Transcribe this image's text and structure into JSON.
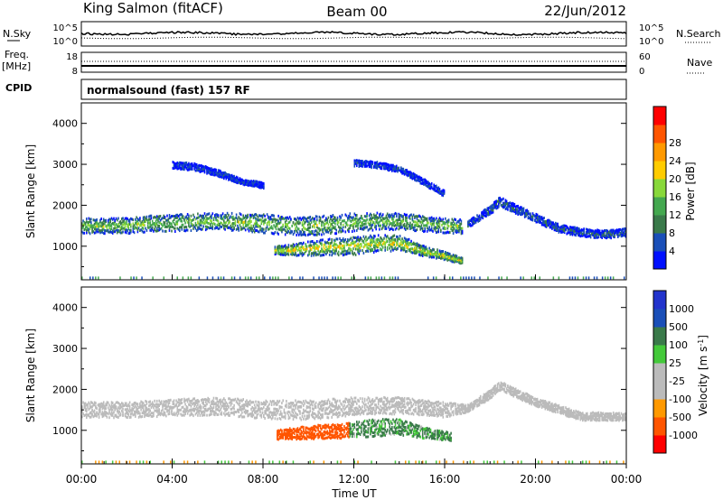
{
  "header": {
    "station": "King Salmon (fitACF)",
    "beam": "Beam 00",
    "date": "22/Jun/2012"
  },
  "top_panels": {
    "nsky_label": "N.Sky",
    "nsky_ticks": [
      "10^5",
      "10^0"
    ],
    "nsearch_label": "N.Search",
    "freq_label_line1": "Freq.",
    "freq_label_line2": "[MHz]",
    "freq_ticks": [
      "18",
      "8"
    ],
    "nave_label": "Nave",
    "nave_ticks": [
      "60",
      "0"
    ],
    "cpid_label": "CPID",
    "cpid_value": "normalsound (fast) 157 RF"
  },
  "colors": {
    "power_scale": [
      "#0010ff",
      "#1a4fb8",
      "#3a7a4a",
      "#44a84f",
      "#88d83a",
      "#ffcc00",
      "#ff9900",
      "#ff5500",
      "#ff0000"
    ],
    "velocity_scale": [
      "#ff0000",
      "#ff5500",
      "#ff9900",
      "#bbbbbb",
      "#bbbbbb",
      "#44c93a",
      "#3a7a4a",
      "#1a4fb8",
      "#2233cc"
    ],
    "ground_scatter": "#bbbbbb"
  },
  "chart_data": [
    {
      "type": "heatmap",
      "name": "Power",
      "ylabel": "Slant Range [km]",
      "yticks": [
        "1000",
        "2000",
        "3000",
        "4000"
      ],
      "ylim": [
        180,
        4500
      ],
      "colorbar_label": "Power [dB]",
      "colorbar_ticks": [
        "4",
        "8",
        "12",
        "16",
        "20",
        "24",
        "28"
      ],
      "colorbar_range": [
        0,
        30
      ],
      "bands": [
        {
          "x": [
            0,
            1,
            2,
            3,
            4,
            5,
            6,
            7,
            8,
            9,
            10,
            11,
            12,
            13,
            14,
            15,
            16,
            16.8
          ],
          "range_center": [
            1500,
            1500,
            1500,
            1550,
            1560,
            1580,
            1600,
            1580,
            1550,
            1500,
            1480,
            1520,
            1580,
            1600,
            1600,
            1550,
            1500,
            1480
          ],
          "width": [
            380,
            380,
            380,
            400,
            420,
            420,
            420,
            440,
            460,
            470,
            470,
            460,
            440,
            420,
            400,
            380,
            360,
            340
          ],
          "core_power": 14
        },
        {
          "x": [
            8.5,
            9,
            10,
            11,
            12,
            13,
            14,
            15,
            16,
            16.8
          ],
          "range_center": [
            920,
            910,
            940,
            980,
            1000,
            1060,
            1080,
            900,
            780,
            650
          ],
          "width": [
            200,
            250,
            350,
            400,
            450,
            420,
            380,
            250,
            200,
            150
          ],
          "core_power": 18
        },
        {
          "x": [
            17,
            18,
            18.4,
            19,
            20,
            21,
            22,
            23,
            24
          ],
          "range_center": [
            1550,
            1900,
            2100,
            1950,
            1700,
            1450,
            1350,
            1300,
            1350
          ],
          "width": [
            180,
            220,
            230,
            220,
            200,
            200,
            200,
            200,
            200
          ],
          "core_power": 6
        },
        {
          "x": [
            4,
            5,
            6,
            7,
            8
          ],
          "range_center": [
            3000,
            2950,
            2800,
            2600,
            2500
          ],
          "width": [
            160,
            180,
            160,
            140,
            140
          ],
          "core_power": 4
        },
        {
          "x": [
            12,
            13,
            14,
            15,
            16
          ],
          "range_center": [
            3050,
            3000,
            2900,
            2600,
            2300
          ],
          "width": [
            150,
            150,
            150,
            150,
            150
          ],
          "core_power": 4
        }
      ]
    },
    {
      "type": "heatmap",
      "name": "Velocity",
      "xlabel": "Time UT",
      "xticks": [
        "00:00",
        "04:00",
        "08:00",
        "12:00",
        "16:00",
        "20:00",
        "00:00"
      ],
      "xlim": [
        0,
        24
      ],
      "ylabel": "Slant Range [km]",
      "yticks": [
        "1000",
        "2000",
        "3000",
        "4000"
      ],
      "ylim": [
        180,
        4500
      ],
      "colorbar_label": "Velocity [m s^-1]",
      "colorbar_ticks": [
        "1000",
        "500",
        "100",
        "25",
        "-25",
        "-100",
        "-500",
        "-1000"
      ],
      "colorbar_range": [
        -1000,
        1000
      ],
      "bands": [
        {
          "x": [
            0,
            2,
            4,
            6,
            8,
            10,
            12,
            14,
            16,
            17,
            18,
            18.4,
            19,
            20,
            22,
            24
          ],
          "range_center": [
            1500,
            1500,
            1550,
            1580,
            1500,
            1480,
            1580,
            1600,
            1500,
            1550,
            1900,
            2100,
            1950,
            1700,
            1350,
            1350
          ],
          "width": [
            380,
            380,
            420,
            420,
            460,
            470,
            440,
            400,
            360,
            180,
            220,
            230,
            220,
            200,
            200,
            200
          ],
          "velocity": 0
        },
        {
          "x": [
            8.6,
            9,
            10,
            11,
            11.8
          ],
          "range_center": [
            900,
            920,
            950,
            980,
            1000
          ],
          "width": [
            220,
            260,
            320,
            360,
            380
          ],
          "velocity": -300
        },
        {
          "x": [
            11.8,
            13,
            14,
            15,
            16.3
          ],
          "range_center": [
            1000,
            1060,
            1080,
            950,
            850
          ],
          "width": [
            380,
            420,
            380,
            280,
            200
          ],
          "velocity": 150
        }
      ]
    }
  ]
}
